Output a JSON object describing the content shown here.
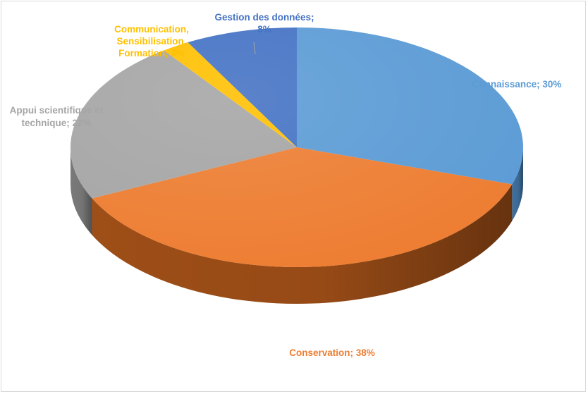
{
  "chart_data": {
    "type": "pie",
    "three_d": true,
    "title": "",
    "legend": "none",
    "slices": [
      {
        "label": "Connaissance",
        "value": 30,
        "label_lines": [
          "Connaissance; 30%"
        ],
        "color": "#5B9BD5",
        "side_color": "#3E6F9E",
        "label_color": "#5B9BD5"
      },
      {
        "label": "Conservation",
        "value": 38,
        "label_lines": [
          "Conservation; 38%"
        ],
        "color": "#ED7D31",
        "side_color": "#9E4E17",
        "label_color": "#ED7D31"
      },
      {
        "label": "Appui scientifique et technique",
        "value": 22,
        "label_lines": [
          "Appui scientifique et",
          "technique; 22%"
        ],
        "color": "#A5A5A5",
        "side_color": "#7A7A7A",
        "label_color": "#A5A5A5"
      },
      {
        "label": "Communication, Sensibilisation, Formation",
        "value": 2,
        "label_lines": [
          "Communication,",
          "Sensibilisation,",
          "Formation; 2%"
        ],
        "color": "#FFC000",
        "side_color": "#B38600",
        "label_color": "#FFC000"
      },
      {
        "label": "Gestion des données",
        "value": 8,
        "label_lines": [
          "Gestion des données;",
          "8%"
        ],
        "color": "#4472C4",
        "side_color": "#2F5597",
        "label_color": "#4472C4"
      }
    ]
  }
}
